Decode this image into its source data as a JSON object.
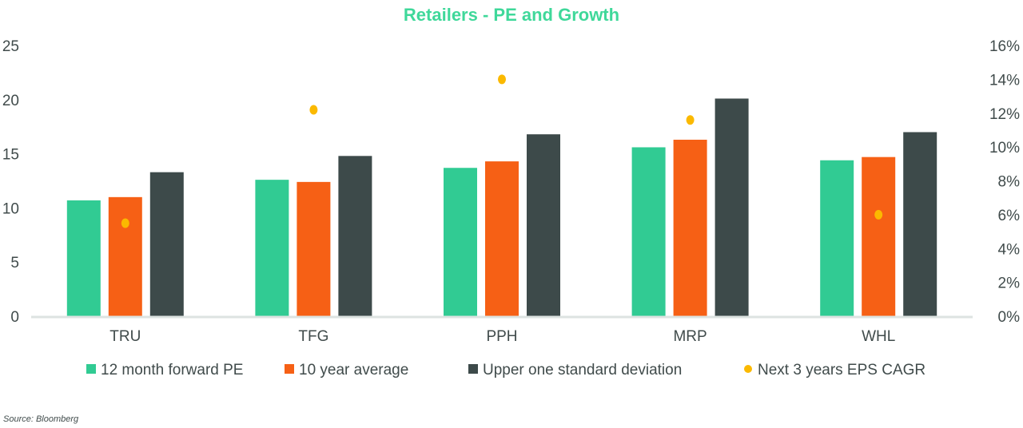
{
  "chart_data": {
    "type": "bar",
    "title": "Retailers - PE and Growth",
    "categories": [
      "TRU",
      "TFG",
      "PPH",
      "MRP",
      "WHL"
    ],
    "series": [
      {
        "name": "12 month forward PE",
        "kind": "bar",
        "axis": "left",
        "color": "#31cb93",
        "values": [
          10.7,
          12.6,
          13.7,
          15.6,
          14.4
        ]
      },
      {
        "name": "10 year average",
        "kind": "bar",
        "axis": "left",
        "color": "#f66015",
        "values": [
          11.0,
          12.4,
          14.3,
          16.3,
          14.7
        ]
      },
      {
        "name": "Upper one standard deviation",
        "kind": "bar",
        "axis": "left",
        "color": "#3d4a4a",
        "values": [
          13.3,
          14.8,
          16.8,
          20.1,
          17.0
        ]
      },
      {
        "name": "Next 3 years EPS CAGR",
        "kind": "scatter",
        "axis": "right",
        "color": "#fbb900",
        "values": [
          5.5,
          12.2,
          14.0,
          11.6,
          6.0
        ]
      }
    ],
    "y_left": {
      "ylim": [
        0,
        25
      ],
      "ticks": [
        "0",
        "5",
        "10",
        "15",
        "20",
        "25"
      ]
    },
    "y_right": {
      "ylim": [
        0,
        16
      ],
      "ticks": [
        "0%",
        "2%",
        "4%",
        "6%",
        "8%",
        "10%",
        "12%",
        "14%",
        "16%"
      ]
    },
    "grid": false,
    "legend": "bottom",
    "source": "Source: Bloomberg"
  }
}
